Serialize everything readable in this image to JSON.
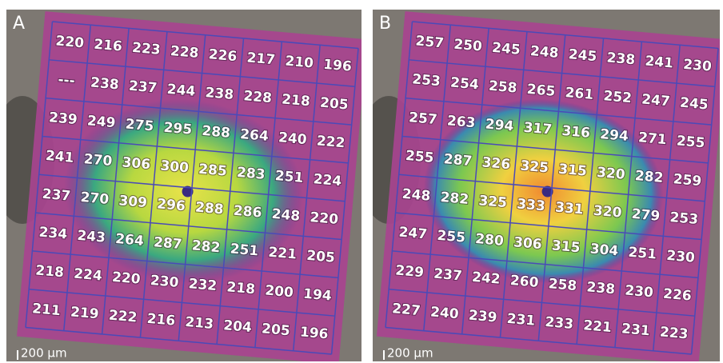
{
  "panels": [
    {
      "label": "A",
      "scale": "200 μm",
      "grid": [
        [
          220,
          216,
          223,
          228,
          226,
          217,
          210,
          196
        ],
        [
          "---",
          238,
          237,
          244,
          238,
          228,
          218,
          205
        ],
        [
          239,
          249,
          275,
          295,
          288,
          264,
          240,
          222
        ],
        [
          241,
          270,
          306,
          300,
          285,
          283,
          251,
          224
        ],
        [
          237,
          270,
          309,
          296,
          288,
          286,
          248,
          220
        ],
        [
          234,
          243,
          264,
          287,
          282,
          251,
          221,
          205
        ],
        [
          218,
          224,
          220,
          230,
          232,
          218,
          200,
          194
        ],
        [
          211,
          219,
          222,
          216,
          213,
          204,
          205,
          196
        ]
      ]
    },
    {
      "label": "B",
      "scale": "200 μm",
      "grid": [
        [
          257,
          250,
          245,
          248,
          245,
          238,
          241,
          230
        ],
        [
          253,
          254,
          258,
          265,
          261,
          252,
          247,
          245
        ],
        [
          257,
          263,
          294,
          317,
          316,
          294,
          271,
          255
        ],
        [
          255,
          287,
          326,
          325,
          315,
          320,
          282,
          259
        ],
        [
          248,
          282,
          325,
          333,
          331,
          320,
          279,
          253
        ],
        [
          247,
          255,
          280,
          306,
          315,
          304,
          251,
          230
        ],
        [
          229,
          237,
          242,
          260,
          258,
          238,
          230,
          226
        ],
        [
          227,
          240,
          239,
          231,
          233,
          221,
          231,
          223
        ]
      ]
    }
  ]
}
